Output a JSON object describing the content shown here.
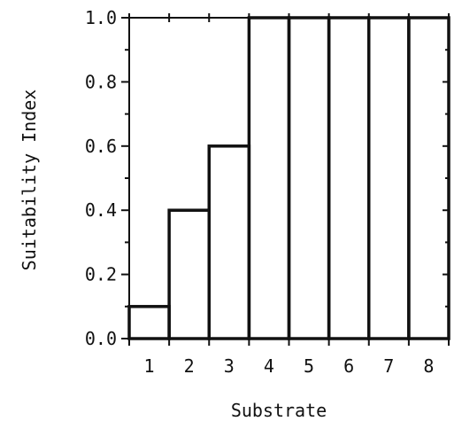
{
  "chart_data": {
    "type": "bar",
    "categories": [
      "1",
      "2",
      "3",
      "4",
      "5",
      "6",
      "7",
      "8"
    ],
    "values": [
      0.1,
      0.4,
      0.6,
      1.0,
      1.0,
      1.0,
      1.0,
      1.0
    ],
    "title": "",
    "xlabel": "Substrate",
    "ylabel": "Suitability Index",
    "ylim": [
      0,
      1.0
    ],
    "yticks": [
      "0.0",
      "0.2",
      "0.4",
      "0.6",
      "0.8",
      "1.0"
    ],
    "grid": false,
    "legend": "none",
    "colors": {
      "ink": "#111111",
      "background": "#ffffff"
    }
  }
}
